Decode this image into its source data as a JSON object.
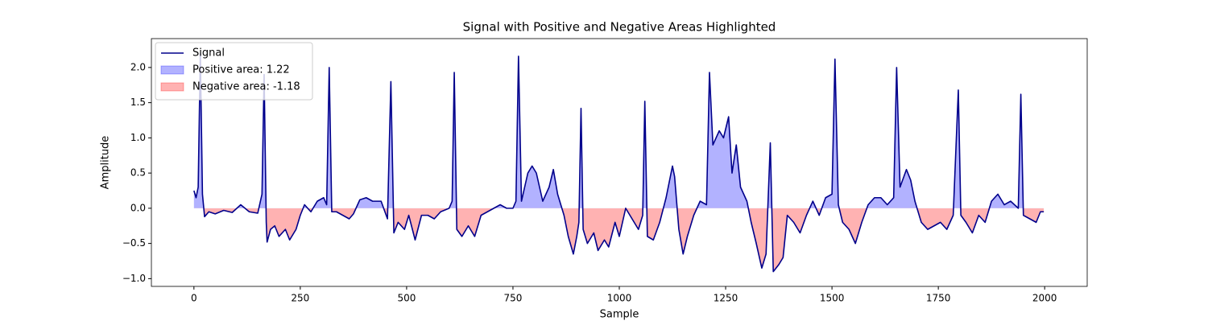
{
  "chart_data": {
    "type": "line",
    "title": "Signal with Positive and Negative Areas Highlighted",
    "x_label": "Sample",
    "y_label": "Amplitude",
    "x": [
      0,
      5,
      10,
      15,
      20,
      25,
      35,
      50,
      70,
      90,
      110,
      130,
      150,
      160,
      165,
      170,
      172,
      180,
      190,
      200,
      215,
      225,
      240,
      250,
      260,
      275,
      290,
      305,
      312,
      318,
      324,
      335,
      350,
      365,
      375,
      390,
      405,
      420,
      440,
      455,
      463,
      470,
      480,
      495,
      505,
      520,
      535,
      550,
      565,
      580,
      600,
      607,
      612,
      618,
      630,
      645,
      660,
      675,
      690,
      705,
      720,
      735,
      750,
      757,
      763,
      770,
      785,
      795,
      805,
      820,
      835,
      845,
      855,
      870,
      880,
      892,
      900,
      905,
      910,
      915,
      925,
      940,
      950,
      965,
      975,
      990,
      1000,
      1015,
      1030,
      1045,
      1055,
      1060,
      1066,
      1080,
      1095,
      1110,
      1125,
      1130,
      1140,
      1150,
      1160,
      1175,
      1190,
      1205,
      1212,
      1220,
      1235,
      1245,
      1257,
      1265,
      1275,
      1285,
      1300,
      1310,
      1322,
      1335,
      1345,
      1355,
      1362,
      1375,
      1385,
      1395,
      1410,
      1425,
      1440,
      1455,
      1470,
      1485,
      1500,
      1507,
      1515,
      1525,
      1540,
      1555,
      1570,
      1585,
      1600,
      1615,
      1630,
      1645,
      1652,
      1660,
      1675,
      1685,
      1695,
      1710,
      1725,
      1740,
      1755,
      1770,
      1785,
      1797,
      1803,
      1815,
      1830,
      1845,
      1860,
      1875,
      1890,
      1905,
      1920,
      1938,
      1944,
      1950,
      1965,
      1980,
      1990,
      1998
    ],
    "series": [
      {
        "name": "Signal",
        "color": "#00008b",
        "values": [
          0.25,
          0.15,
          0.3,
          2.2,
          0.2,
          -0.12,
          -0.05,
          -0.08,
          -0.03,
          -0.06,
          0.05,
          -0.05,
          -0.07,
          0.2,
          1.9,
          -0.2,
          -0.48,
          -0.3,
          -0.25,
          -0.4,
          -0.3,
          -0.45,
          -0.3,
          -0.1,
          0.05,
          -0.05,
          0.1,
          0.15,
          0.05,
          2.0,
          -0.05,
          -0.05,
          -0.1,
          -0.15,
          -0.08,
          0.12,
          0.15,
          0.1,
          0.1,
          -0.15,
          1.8,
          -0.35,
          -0.2,
          -0.3,
          -0.1,
          -0.45,
          -0.1,
          -0.1,
          -0.15,
          -0.05,
          0.0,
          0.1,
          1.93,
          -0.3,
          -0.4,
          -0.25,
          -0.4,
          -0.1,
          -0.05,
          0.0,
          0.05,
          0.0,
          0.0,
          0.1,
          2.16,
          0.1,
          0.5,
          0.6,
          0.5,
          0.1,
          0.3,
          0.55,
          0.2,
          -0.1,
          -0.4,
          -0.65,
          -0.4,
          -0.2,
          1.42,
          -0.3,
          -0.5,
          -0.35,
          -0.6,
          -0.45,
          -0.55,
          -0.2,
          -0.4,
          0.0,
          -0.15,
          -0.3,
          -0.1,
          1.52,
          -0.4,
          -0.45,
          -0.2,
          0.15,
          0.6,
          0.45,
          -0.3,
          -0.65,
          -0.4,
          -0.1,
          0.1,
          0.05,
          1.93,
          0.9,
          1.1,
          1.0,
          1.3,
          0.5,
          0.9,
          0.3,
          0.1,
          -0.2,
          -0.5,
          -0.85,
          -0.65,
          0.93,
          -0.9,
          -0.8,
          -0.7,
          -0.1,
          -0.2,
          -0.35,
          -0.1,
          0.1,
          -0.1,
          0.15,
          0.2,
          2.12,
          0.05,
          -0.2,
          -0.3,
          -0.5,
          -0.2,
          0.05,
          0.15,
          0.15,
          0.05,
          0.15,
          2.0,
          0.3,
          0.55,
          0.4,
          0.1,
          -0.2,
          -0.3,
          -0.25,
          -0.2,
          -0.3,
          -0.1,
          1.68,
          -0.1,
          -0.2,
          -0.35,
          -0.1,
          -0.2,
          0.1,
          0.2,
          0.05,
          0.1,
          0.0,
          1.62,
          -0.1,
          -0.15,
          -0.2,
          -0.05,
          -0.05
        ]
      }
    ],
    "fills": [
      {
        "name": "Positive area: 1.22",
        "color": "#0000ff",
        "side": "positive"
      },
      {
        "name": "Negative area: -1.18",
        "color": "#ff0000",
        "side": "negative"
      }
    ],
    "xlim": [
      -100,
      2100
    ],
    "xticks": [
      0,
      250,
      500,
      750,
      1000,
      1250,
      1500,
      1750,
      2000
    ],
    "ylim": [
      -1.11,
      2.41
    ],
    "yticks": [
      {
        "value": -1,
        "label": "−1.0"
      },
      {
        "value": -0.5,
        "label": "−0.5"
      },
      {
        "value": 0,
        "label": "0.0"
      },
      0.5,
      {
        "value": 1,
        "label": "1.0"
      },
      1.5,
      {
        "value": 2,
        "label": "2.0"
      }
    ],
    "legend": "upper left"
  }
}
